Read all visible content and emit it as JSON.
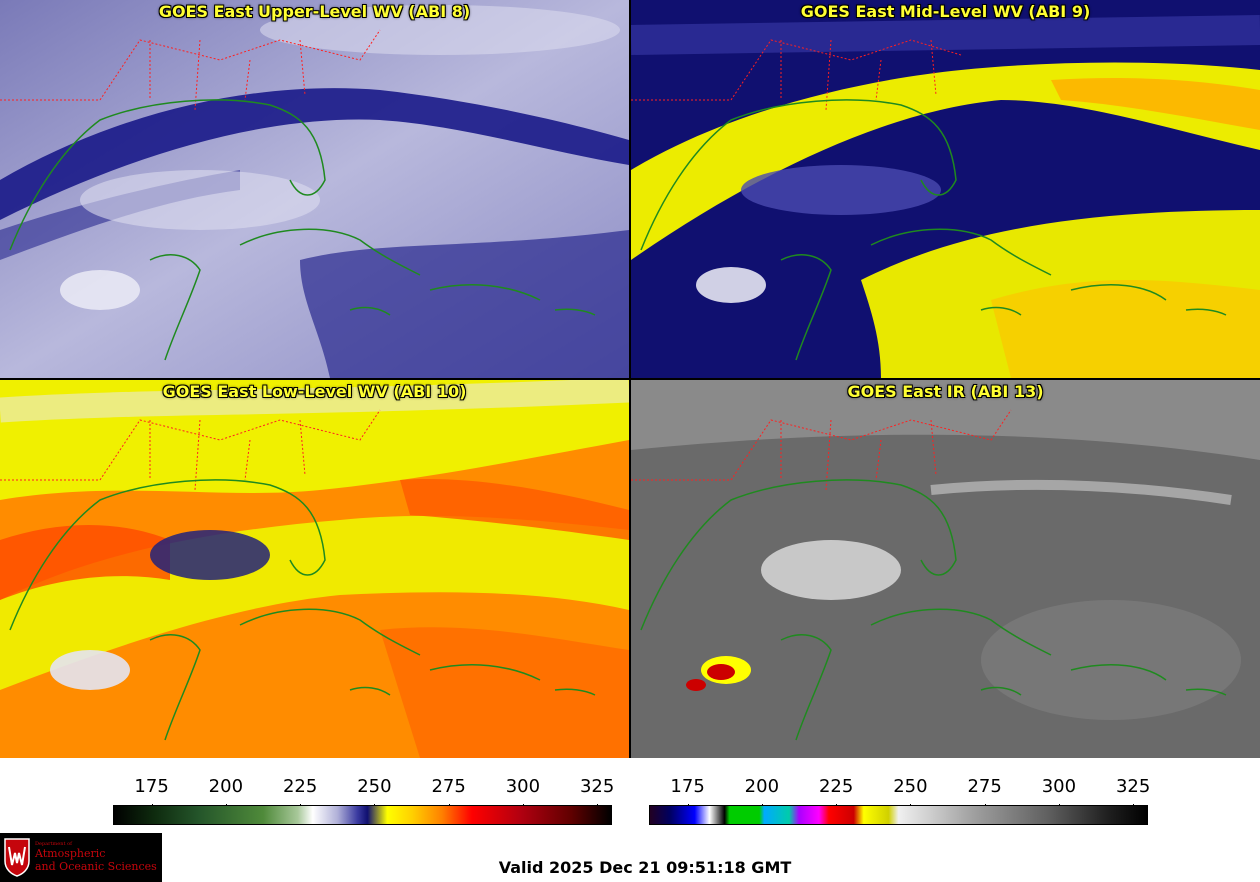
{
  "panels": [
    {
      "id": "p1",
      "title": "GOES East Upper-Level WV (ABI 8)"
    },
    {
      "id": "p2",
      "title": "GOES East Mid-Level WV (ABI 9)"
    },
    {
      "id": "p3",
      "title": "GOES East Low-Level WV (ABI 10)"
    },
    {
      "id": "p4",
      "title": "GOES East IR (ABI 13)"
    }
  ],
  "colorbars": {
    "wv": {
      "ticks": [
        "175",
        "200",
        "225",
        "250",
        "275",
        "300",
        "325"
      ],
      "min": 162,
      "max": 330
    },
    "ir": {
      "ticks": [
        "175",
        "200",
        "225",
        "250",
        "275",
        "300",
        "325"
      ],
      "min": 162,
      "max": 330
    }
  },
  "valid_time": "Valid 2025 Dec 21 09:51:18 GMT",
  "logo": {
    "dept": "Department of",
    "line1": "Atmospheric",
    "line2": "and Oceanic Sciences"
  },
  "colors": {
    "title": "#ffff33",
    "state_borders": "#ff2020",
    "coastline": "#1f8a1f",
    "logo_red": "#c5050c"
  }
}
